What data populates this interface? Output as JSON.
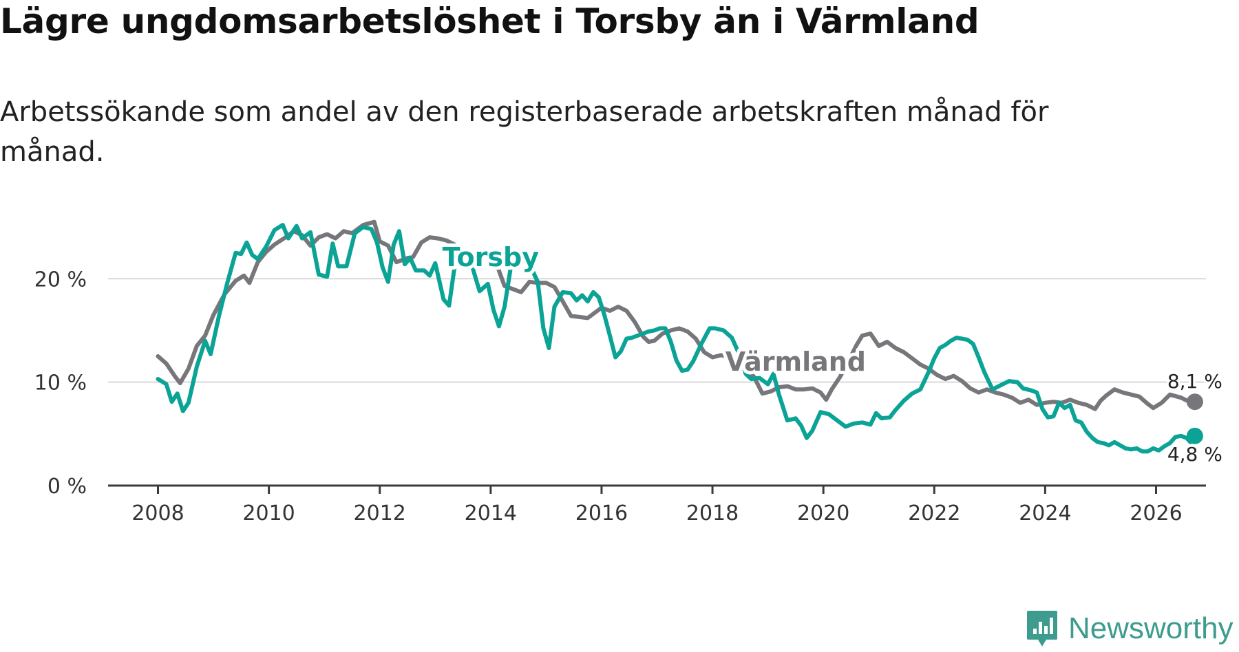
{
  "title": "Lägre ungdomsarbetslöshet i Torsby än i Värmland",
  "subtitle": "Arbetssökande som andel av den registerbaserade arbetskraften månad för månad.",
  "brand": {
    "name": "Newsworthy",
    "icon": "newsworthy-logo-icon",
    "color": "#3d9c8e"
  },
  "chart_data": {
    "type": "line",
    "title": "Lägre ungdomsarbetslöshet i Torsby än i Värmland",
    "xlabel": "",
    "ylabel": "",
    "xlim": [
      2007.1,
      2026.9
    ],
    "ylim": [
      0,
      27
    ],
    "x_ticks": [
      {
        "value": 2008,
        "label": "2008"
      },
      {
        "value": 2010,
        "label": "2010"
      },
      {
        "value": 2012,
        "label": "2012"
      },
      {
        "value": 2014,
        "label": "2014"
      },
      {
        "value": 2016,
        "label": "2016"
      },
      {
        "value": 2018,
        "label": "2018"
      },
      {
        "value": 2020,
        "label": "2020"
      },
      {
        "value": 2022,
        "label": "2022"
      },
      {
        "value": 2024,
        "label": "2024"
      },
      {
        "value": 2026,
        "label": "2026"
      }
    ],
    "y_ticks": [
      {
        "value": 0,
        "label": "0 %"
      },
      {
        "value": 10,
        "label": "10 %"
      },
      {
        "value": 20,
        "label": "20 %"
      }
    ],
    "grid": true,
    "series": [
      {
        "name": "Värmland",
        "label": "Värmland",
        "color": "#76767b",
        "label_at": [
          2019.5,
          11.1
        ],
        "end_label": "8,1 %",
        "points": [
          [
            2008.0,
            12.5
          ],
          [
            2008.15,
            11.8
          ],
          [
            2008.3,
            10.6
          ],
          [
            2008.4,
            9.9
          ],
          [
            2008.55,
            11.3
          ],
          [
            2008.7,
            13.5
          ],
          [
            2008.85,
            14.5
          ],
          [
            2009.0,
            16.5
          ],
          [
            2009.2,
            18.5
          ],
          [
            2009.4,
            19.8
          ],
          [
            2009.55,
            20.3
          ],
          [
            2009.65,
            19.6
          ],
          [
            2009.8,
            21.6
          ],
          [
            2009.95,
            22.6
          ],
          [
            2010.1,
            23.3
          ],
          [
            2010.3,
            24.0
          ],
          [
            2010.45,
            24.6
          ],
          [
            2010.6,
            24.2
          ],
          [
            2010.75,
            23.2
          ],
          [
            2010.9,
            24.0
          ],
          [
            2011.05,
            24.3
          ],
          [
            2011.2,
            23.9
          ],
          [
            2011.35,
            24.6
          ],
          [
            2011.5,
            24.4
          ],
          [
            2011.7,
            25.2
          ],
          [
            2011.9,
            25.5
          ],
          [
            2012.0,
            23.6
          ],
          [
            2012.15,
            23.2
          ],
          [
            2012.3,
            21.6
          ],
          [
            2012.5,
            22.0
          ],
          [
            2012.6,
            22.1
          ],
          [
            2012.75,
            23.5
          ],
          [
            2012.9,
            24.0
          ],
          [
            2013.05,
            23.9
          ],
          [
            2013.2,
            23.7
          ],
          [
            2013.35,
            23.3
          ],
          [
            2013.5,
            22.5
          ],
          [
            2013.7,
            22.5
          ],
          [
            2013.85,
            22.7
          ],
          [
            2014.0,
            22.3
          ],
          [
            2014.1,
            21.5
          ],
          [
            2014.25,
            19.3
          ],
          [
            2014.4,
            19.0
          ],
          [
            2014.55,
            18.7
          ],
          [
            2014.7,
            19.7
          ],
          [
            2014.85,
            19.6
          ],
          [
            2015.0,
            19.6
          ],
          [
            2015.15,
            19.2
          ],
          [
            2015.3,
            17.8
          ],
          [
            2015.45,
            16.4
          ],
          [
            2015.6,
            16.3
          ],
          [
            2015.75,
            16.2
          ],
          [
            2015.9,
            16.8
          ],
          [
            2016.0,
            17.2
          ],
          [
            2016.15,
            16.9
          ],
          [
            2016.3,
            17.3
          ],
          [
            2016.45,
            16.9
          ],
          [
            2016.6,
            15.8
          ],
          [
            2016.75,
            14.4
          ],
          [
            2016.85,
            13.9
          ],
          [
            2016.95,
            14.0
          ],
          [
            2017.1,
            14.7
          ],
          [
            2017.25,
            15.0
          ],
          [
            2017.4,
            15.2
          ],
          [
            2017.55,
            14.9
          ],
          [
            2017.7,
            14.2
          ],
          [
            2017.85,
            12.9
          ],
          [
            2018.0,
            12.4
          ],
          [
            2018.15,
            12.6
          ],
          [
            2018.3,
            12.5
          ],
          [
            2018.45,
            12.2
          ],
          [
            2018.6,
            11.5
          ],
          [
            2018.75,
            10.5
          ],
          [
            2018.9,
            8.9
          ],
          [
            2019.05,
            9.1
          ],
          [
            2019.2,
            9.5
          ],
          [
            2019.35,
            9.6
          ],
          [
            2019.5,
            9.3
          ],
          [
            2019.65,
            9.3
          ],
          [
            2019.8,
            9.4
          ],
          [
            2019.95,
            9.0
          ],
          [
            2020.05,
            8.3
          ],
          [
            2020.15,
            9.3
          ],
          [
            2020.3,
            10.5
          ],
          [
            2020.45,
            12.0
          ],
          [
            2020.6,
            13.6
          ],
          [
            2020.7,
            14.5
          ],
          [
            2020.85,
            14.7
          ],
          [
            2021.0,
            13.5
          ],
          [
            2021.15,
            13.9
          ],
          [
            2021.3,
            13.3
          ],
          [
            2021.45,
            12.9
          ],
          [
            2021.6,
            12.3
          ],
          [
            2021.75,
            11.7
          ],
          [
            2021.9,
            11.3
          ],
          [
            2022.05,
            10.7
          ],
          [
            2022.2,
            10.3
          ],
          [
            2022.35,
            10.6
          ],
          [
            2022.5,
            10.1
          ],
          [
            2022.65,
            9.4
          ],
          [
            2022.8,
            9.0
          ],
          [
            2022.95,
            9.3
          ],
          [
            2023.1,
            9.0
          ],
          [
            2023.25,
            8.8
          ],
          [
            2023.4,
            8.5
          ],
          [
            2023.55,
            8.0
          ],
          [
            2023.7,
            8.3
          ],
          [
            2023.85,
            7.8
          ],
          [
            2024.0,
            8.0
          ],
          [
            2024.15,
            8.1
          ],
          [
            2024.3,
            8.0
          ],
          [
            2024.45,
            8.3
          ],
          [
            2024.6,
            8.0
          ],
          [
            2024.75,
            7.8
          ],
          [
            2024.9,
            7.4
          ],
          [
            2025.0,
            8.2
          ],
          [
            2025.1,
            8.7
          ],
          [
            2025.25,
            9.3
          ],
          [
            2025.4,
            9.0
          ],
          [
            2025.55,
            8.8
          ],
          [
            2025.7,
            8.6
          ],
          [
            2025.85,
            7.9
          ],
          [
            2025.95,
            7.5
          ],
          [
            2026.1,
            8.0
          ],
          [
            2026.25,
            8.8
          ],
          [
            2026.45,
            8.5
          ],
          [
            2026.6,
            8.1
          ],
          [
            2026.7,
            8.1
          ]
        ]
      },
      {
        "name": "Torsby",
        "label": "Torsby",
        "color": "#0aa396",
        "label_at": [
          2014.0,
          21.2
        ],
        "end_label": "4,8 %",
        "points": [
          [
            2008.0,
            10.3
          ],
          [
            2008.15,
            9.8
          ],
          [
            2008.25,
            8.1
          ],
          [
            2008.35,
            8.9
          ],
          [
            2008.45,
            7.2
          ],
          [
            2008.55,
            8.0
          ],
          [
            2008.7,
            11.5
          ],
          [
            2008.85,
            14.0
          ],
          [
            2008.95,
            12.7
          ],
          [
            2009.1,
            16.4
          ],
          [
            2009.25,
            19.6
          ],
          [
            2009.4,
            22.5
          ],
          [
            2009.5,
            22.4
          ],
          [
            2009.6,
            23.5
          ],
          [
            2009.7,
            22.3
          ],
          [
            2009.8,
            21.9
          ],
          [
            2009.95,
            23.1
          ],
          [
            2010.1,
            24.7
          ],
          [
            2010.25,
            25.2
          ],
          [
            2010.35,
            23.9
          ],
          [
            2010.5,
            25.1
          ],
          [
            2010.6,
            23.9
          ],
          [
            2010.75,
            24.5
          ],
          [
            2010.9,
            20.4
          ],
          [
            2011.05,
            20.2
          ],
          [
            2011.15,
            23.4
          ],
          [
            2011.25,
            21.2
          ],
          [
            2011.4,
            21.2
          ],
          [
            2011.55,
            24.4
          ],
          [
            2011.7,
            25.0
          ],
          [
            2011.85,
            24.8
          ],
          [
            2011.95,
            23.5
          ],
          [
            2012.05,
            21.1
          ],
          [
            2012.15,
            19.7
          ],
          [
            2012.25,
            23.3
          ],
          [
            2012.35,
            24.6
          ],
          [
            2012.45,
            21.4
          ],
          [
            2012.55,
            22.0
          ],
          [
            2012.65,
            20.8
          ],
          [
            2012.8,
            20.8
          ],
          [
            2012.9,
            20.3
          ],
          [
            2013.0,
            21.5
          ],
          [
            2013.15,
            18.0
          ],
          [
            2013.25,
            17.4
          ],
          [
            2013.35,
            21.2
          ],
          [
            2013.5,
            22.6
          ],
          [
            2013.65,
            21.5
          ],
          [
            2013.8,
            18.8
          ],
          [
            2013.95,
            19.5
          ],
          [
            2014.05,
            17.0
          ],
          [
            2014.15,
            15.4
          ],
          [
            2014.25,
            17.3
          ],
          [
            2014.4,
            22.4
          ],
          [
            2014.55,
            21.9
          ],
          [
            2014.7,
            21.4
          ],
          [
            2014.85,
            19.7
          ],
          [
            2014.95,
            15.2
          ],
          [
            2015.05,
            13.3
          ],
          [
            2015.15,
            17.3
          ],
          [
            2015.3,
            18.7
          ],
          [
            2015.45,
            18.6
          ],
          [
            2015.55,
            17.9
          ],
          [
            2015.65,
            18.4
          ],
          [
            2015.75,
            17.8
          ],
          [
            2015.85,
            18.7
          ],
          [
            2015.95,
            18.2
          ],
          [
            2016.05,
            16.5
          ],
          [
            2016.15,
            14.5
          ],
          [
            2016.25,
            12.4
          ],
          [
            2016.35,
            13.0
          ],
          [
            2016.45,
            14.2
          ],
          [
            2016.55,
            14.3
          ],
          [
            2016.7,
            14.6
          ],
          [
            2016.85,
            14.9
          ],
          [
            2016.95,
            15.0
          ],
          [
            2017.05,
            15.2
          ],
          [
            2017.15,
            15.2
          ],
          [
            2017.25,
            13.9
          ],
          [
            2017.35,
            12.1
          ],
          [
            2017.45,
            11.1
          ],
          [
            2017.55,
            11.2
          ],
          [
            2017.65,
            12.0
          ],
          [
            2017.8,
            13.7
          ],
          [
            2017.95,
            15.2
          ],
          [
            2018.05,
            15.2
          ],
          [
            2018.2,
            15.0
          ],
          [
            2018.35,
            14.3
          ],
          [
            2018.5,
            12.5
          ],
          [
            2018.6,
            10.8
          ],
          [
            2018.7,
            10.3
          ],
          [
            2018.85,
            10.4
          ],
          [
            2019.0,
            9.8
          ],
          [
            2019.1,
            10.8
          ],
          [
            2019.2,
            8.8
          ],
          [
            2019.35,
            6.3
          ],
          [
            2019.5,
            6.5
          ],
          [
            2019.6,
            5.8
          ],
          [
            2019.7,
            4.6
          ],
          [
            2019.8,
            5.3
          ],
          [
            2019.95,
            7.1
          ],
          [
            2020.1,
            6.9
          ],
          [
            2020.25,
            6.3
          ],
          [
            2020.4,
            5.7
          ],
          [
            2020.55,
            6.0
          ],
          [
            2020.7,
            6.1
          ],
          [
            2020.85,
            5.9
          ],
          [
            2020.95,
            7.0
          ],
          [
            2021.05,
            6.5
          ],
          [
            2021.2,
            6.6
          ],
          [
            2021.3,
            7.3
          ],
          [
            2021.45,
            8.2
          ],
          [
            2021.6,
            8.9
          ],
          [
            2021.75,
            9.3
          ],
          [
            2021.9,
            11.0
          ],
          [
            2022.0,
            12.3
          ],
          [
            2022.1,
            13.3
          ],
          [
            2022.2,
            13.6
          ],
          [
            2022.3,
            14.0
          ],
          [
            2022.4,
            14.3
          ],
          [
            2022.5,
            14.2
          ],
          [
            2022.6,
            14.1
          ],
          [
            2022.7,
            13.7
          ],
          [
            2022.8,
            12.4
          ],
          [
            2022.9,
            11.0
          ],
          [
            2023.05,
            9.3
          ],
          [
            2023.2,
            9.7
          ],
          [
            2023.35,
            10.1
          ],
          [
            2023.5,
            10.0
          ],
          [
            2023.6,
            9.4
          ],
          [
            2023.75,
            9.2
          ],
          [
            2023.85,
            9.0
          ],
          [
            2023.95,
            7.4
          ],
          [
            2024.05,
            6.6
          ],
          [
            2024.15,
            6.7
          ],
          [
            2024.25,
            8.0
          ],
          [
            2024.35,
            7.5
          ],
          [
            2024.45,
            7.8
          ],
          [
            2024.55,
            6.3
          ],
          [
            2024.65,
            6.1
          ],
          [
            2024.75,
            5.2
          ],
          [
            2024.85,
            4.6
          ],
          [
            2024.95,
            4.2
          ],
          [
            2025.05,
            4.1
          ],
          [
            2025.15,
            3.9
          ],
          [
            2025.25,
            4.2
          ],
          [
            2025.35,
            3.9
          ],
          [
            2025.45,
            3.6
          ],
          [
            2025.55,
            3.5
          ],
          [
            2025.65,
            3.6
          ],
          [
            2025.75,
            3.3
          ],
          [
            2025.85,
            3.3
          ],
          [
            2025.95,
            3.6
          ],
          [
            2026.05,
            3.4
          ],
          [
            2026.15,
            3.8
          ],
          [
            2026.25,
            4.1
          ],
          [
            2026.35,
            4.7
          ],
          [
            2026.45,
            4.8
          ],
          [
            2026.55,
            4.6
          ],
          [
            2026.62,
            4.2
          ],
          [
            2026.7,
            4.8
          ]
        ]
      }
    ]
  }
}
